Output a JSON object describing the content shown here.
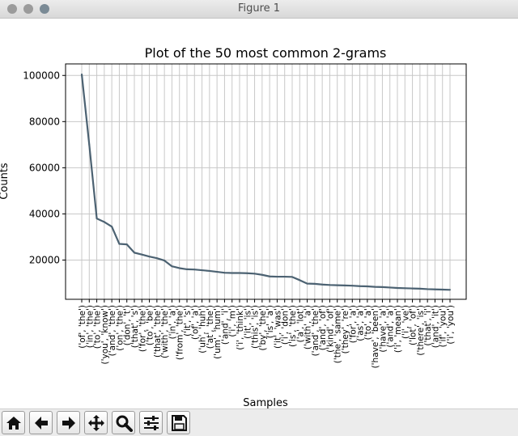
{
  "window": {
    "title": "Figure 1"
  },
  "toolbar": {
    "buttons": [
      {
        "name": "home-button",
        "icon": "home-icon"
      },
      {
        "name": "back-button",
        "icon": "arrow-left-icon"
      },
      {
        "name": "forward-button",
        "icon": "arrow-right-icon"
      },
      {
        "name": "pan-button",
        "icon": "move-icon"
      },
      {
        "name": "zoom-button",
        "icon": "magnifier-icon"
      },
      {
        "name": "subplots-button",
        "icon": "sliders-icon"
      },
      {
        "name": "save-button",
        "icon": "floppy-disk-icon"
      }
    ]
  },
  "chart_data": {
    "type": "line",
    "title": "Plot of the 50 most common 2-grams",
    "xlabel": "Samples",
    "ylabel": "Counts",
    "ylim": [
      3000,
      105000
    ],
    "yticks": [
      20000,
      40000,
      60000,
      80000,
      100000
    ],
    "grid": true,
    "line_color": "#4c6272",
    "categories": [
      "('of', 'the')",
      "('in', 'the')",
      "('to', 'the')",
      "('you', 'know')",
      "('and', 'the')",
      "('on', 'the')",
      "('don', 't')",
      "('that', 's')",
      "('for', 'the')",
      "('to', 'be')",
      "('that', 'the')",
      "('with', 'the')",
      "('in', 'a')",
      "('from', 'the')",
      "('it', 's')",
      "('of', 'a')",
      "('uh', 'huh')",
      "('at', 'the')",
      "('um', 'hum')",
      "('and', 'i')",
      "('i', 'm')",
      "('i', 'think')",
      "('it', 'is')",
      "('this', 'is')",
      "('by', 'the')",
      "('is', 'a')",
      "('it', 'was')",
      "('i', 'don')",
      "('is', 'the')",
      "('a', 'lot')",
      "('with', 'a')",
      "('and', 'the')",
      "('and', 'of')",
      "('kind', 'of')",
      "('the', 'same')",
      "('they', 're')",
      "('for', 'a')",
      "('as', 'a')",
      "('to', 'a')",
      "('have', 'been')",
      "('have', 'a')",
      "('and', 'a')",
      "('i', 'mean')",
      "('i', 've')",
      "('lot', 'of')",
      "('there', 'is')",
      "('that', 'i')",
      "('and', 'it')",
      "('if', 'you')",
      "('i', 'you')"
    ],
    "values": [
      100500,
      70000,
      38000,
      36500,
      34500,
      27000,
      26800,
      23200,
      22400,
      21500,
      20800,
      19800,
      17300,
      16500,
      16000,
      15900,
      15600,
      15300,
      14900,
      14500,
      14400,
      14400,
      14300,
      14100,
      13600,
      12900,
      12800,
      12800,
      12700,
      11300,
      9800,
      9700,
      9400,
      9200,
      9100,
      9000,
      8900,
      8700,
      8600,
      8400,
      8300,
      8100,
      7900,
      7800,
      7700,
      7600,
      7400,
      7300,
      7200,
      7100
    ]
  }
}
